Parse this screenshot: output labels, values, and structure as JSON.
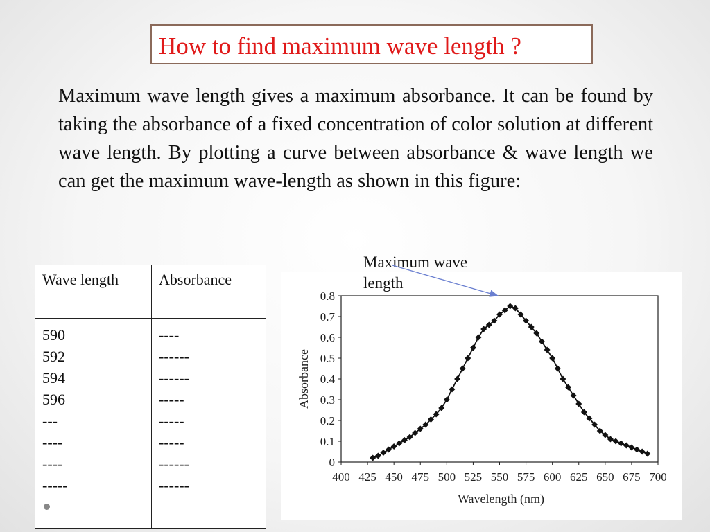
{
  "slide": {
    "title": "How to find maximum wave length ?",
    "paragraph": "Maximum wave length gives a maximum absorbance. It can be found by taking the absorbance of a fixed concentration of color solution at different wave length. By plotting a curve between absorbance & wave length we can get the maximum wave-length as shown in this figure:"
  },
  "table": {
    "headers": [
      "Wave length",
      "Absorbance"
    ],
    "col1": [
      "590",
      "592",
      "594",
      "596",
      "---",
      "----",
      "----",
      "-----"
    ],
    "col2": [
      "----",
      "------",
      "------",
      "-----",
      "-----",
      "-----",
      "------",
      "------"
    ]
  },
  "annotation": {
    "line1": "Maximum wave",
    "line2": "length"
  },
  "colors": {
    "title": "#e01919",
    "title_border": "#8b6a5a",
    "arrow": "#6a7fd0"
  },
  "chart_data": {
    "type": "line",
    "xlabel": "Wavelength (nm)",
    "ylabel": "Absorbance",
    "xlim": [
      400,
      700
    ],
    "ylim": [
      0,
      0.8
    ],
    "xticks": [
      400,
      425,
      450,
      475,
      500,
      525,
      550,
      575,
      600,
      625,
      650,
      675,
      700
    ],
    "yticks": [
      0,
      0.1,
      0.2,
      0.3,
      0.4,
      0.5,
      0.6,
      0.7,
      0.8
    ],
    "ytick_labels": [
      "0",
      "0.1",
      "0.2",
      "0.3",
      "0.4",
      "0.5",
      "0.6",
      "0.7",
      "0.8"
    ],
    "grid": false,
    "marker": "diamond",
    "series": [
      {
        "x": [
          430,
          435,
          440,
          445,
          450,
          455,
          460,
          465,
          470,
          475,
          480,
          485,
          490,
          495,
          500,
          505,
          510,
          515,
          520,
          525,
          530,
          535,
          540,
          545,
          550,
          555,
          560,
          565,
          570,
          575,
          580,
          585,
          590,
          595,
          600,
          605,
          610,
          615,
          620,
          625,
          630,
          635,
          640,
          645,
          650,
          655,
          660,
          665,
          670,
          675,
          680,
          685,
          690
        ],
        "y": [
          0.02,
          0.03,
          0.045,
          0.06,
          0.075,
          0.09,
          0.105,
          0.12,
          0.14,
          0.16,
          0.18,
          0.205,
          0.23,
          0.26,
          0.3,
          0.35,
          0.4,
          0.45,
          0.5,
          0.55,
          0.6,
          0.64,
          0.66,
          0.68,
          0.71,
          0.73,
          0.75,
          0.74,
          0.71,
          0.68,
          0.65,
          0.62,
          0.58,
          0.54,
          0.5,
          0.45,
          0.4,
          0.36,
          0.32,
          0.28,
          0.24,
          0.21,
          0.18,
          0.15,
          0.13,
          0.11,
          0.1,
          0.09,
          0.08,
          0.07,
          0.06,
          0.05,
          0.04
        ]
      }
    ]
  }
}
